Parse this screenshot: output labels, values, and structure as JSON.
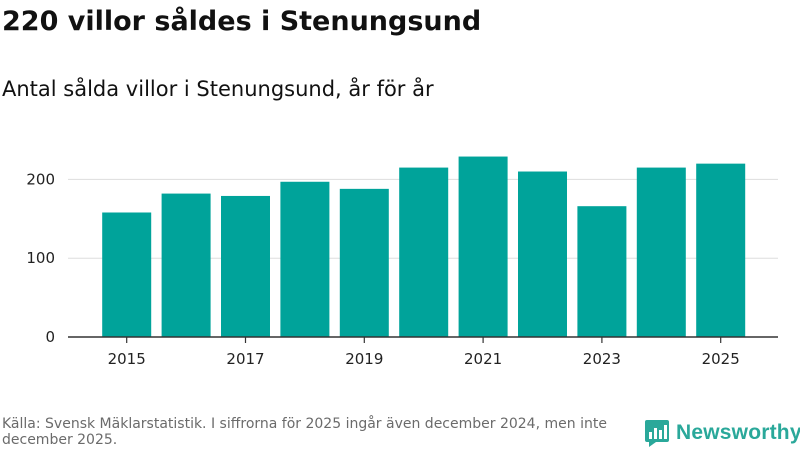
{
  "title": "220 villor såldes i Stenungsund",
  "subtitle": "Antal sålda villor i Stenungsund, år för år",
  "source": "Källa: Svensk Mäklarstatistik. I siffrorna för 2025 ingår även december 2024, men inte december 2025.",
  "brand": {
    "name": "Newsworthy",
    "icon": "newsworthy-logo-icon"
  },
  "colors": {
    "bar": "#00A39A",
    "grid": "#dddddd",
    "axis": "#333333",
    "brand": "#2aa89a"
  },
  "chart_data": {
    "type": "bar",
    "title": "220 villor såldes i Stenungsund",
    "subtitle": "Antal sålda villor i Stenungsund, år för år",
    "xlabel": "",
    "ylabel": "",
    "categories": [
      "2015",
      "2016",
      "2017",
      "2018",
      "2019",
      "2020",
      "2021",
      "2022",
      "2023",
      "2024",
      "2025"
    ],
    "values": [
      158,
      182,
      179,
      197,
      188,
      215,
      229,
      210,
      166,
      215,
      220
    ],
    "ylim": [
      0,
      250
    ],
    "yticks": [
      0,
      100,
      200
    ],
    "xtick_labels": [
      "2015",
      "2017",
      "2019",
      "2021",
      "2023",
      "2025"
    ],
    "grid": true,
    "legend": "none"
  }
}
